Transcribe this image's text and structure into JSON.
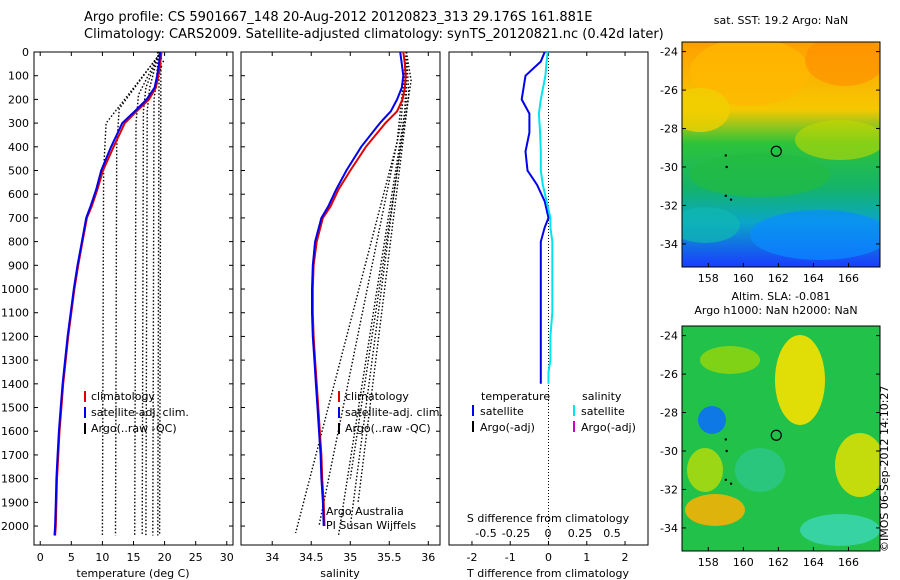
{
  "header": {
    "line1": "Argo profile: CS 5901667_148 20-Aug-2012 20120823_313 29.176S 161.881E",
    "line2": "Climatology: CARS2009. Satellite-adjusted climatology: synTS_20120821.nc (0.42d later)"
  },
  "credit": "©IMOS 06-Sep-2012 14:10:27",
  "colors": {
    "climatology": "#e00000",
    "satellite": "#0000ee",
    "argo": "#000000",
    "sat_salinity": "#00e5ee",
    "argo_adj_salinity": "#cc00cc"
  },
  "chart_data": [
    {
      "type": "line",
      "id": "temperature",
      "xlabel": "temperature (deg C)",
      "ylabel": "",
      "xlim": [
        -1,
        31
      ],
      "ylim": [
        2080,
        0
      ],
      "y_reversed": true,
      "xticks": [
        0,
        5,
        10,
        15,
        20,
        25,
        30
      ],
      "yticks": [
        0,
        100,
        200,
        300,
        400,
        500,
        600,
        700,
        800,
        900,
        1000,
        1100,
        1200,
        1300,
        1400,
        1500,
        1600,
        1700,
        1800,
        1900,
        2000
      ],
      "legend": [
        "climatology",
        "satellite-adj. clim.",
        "Argo(..raw -QC)"
      ],
      "legend_position": "lower-middle",
      "series": [
        {
          "name": "climatology",
          "color": "#e00000",
          "x": [
            19.5,
            19.3,
            19.0,
            18.6,
            17.5,
            15.5,
            13.6,
            11.8,
            10.1,
            9.2,
            8.3,
            7.5,
            6.8,
            6.1,
            5.5,
            5.0,
            4.5,
            4.1,
            3.7,
            3.4,
            3.1,
            2.9,
            2.7,
            2.6,
            2.5,
            2.4
          ],
          "y": [
            0,
            50,
            100,
            150,
            200,
            250,
            300,
            400,
            500,
            580,
            650,
            700,
            800,
            900,
            1000,
            1100,
            1200,
            1300,
            1400,
            1500,
            1600,
            1700,
            1800,
            1900,
            2000,
            2040
          ]
        },
        {
          "name": "satellite-adj. clim.",
          "color": "#0000ee",
          "x": [
            19.3,
            19.1,
            18.8,
            18.4,
            17.1,
            15.2,
            13.2,
            11.4,
            9.8,
            9.0,
            8.1,
            7.4,
            6.7,
            6.0,
            5.4,
            4.9,
            4.4,
            4.0,
            3.6,
            3.3,
            3.0,
            2.8,
            2.6,
            2.5,
            2.4,
            2.3
          ],
          "y": [
            0,
            50,
            100,
            150,
            200,
            250,
            300,
            400,
            500,
            580,
            650,
            700,
            800,
            900,
            1000,
            1100,
            1200,
            1300,
            1400,
            1500,
            1600,
            1700,
            1800,
            1900,
            2000,
            2040
          ]
        }
      ],
      "argo_raw_columns_x": [
        10.2,
        12.3,
        15.4,
        16.6,
        17.2,
        18.3,
        19.1,
        19.4
      ]
    },
    {
      "type": "line",
      "id": "salinity",
      "xlabel": "salinity",
      "ylabel": "",
      "xlim": [
        33.6,
        36.15
      ],
      "ylim": [
        2080,
        0
      ],
      "y_reversed": true,
      "xticks": [
        34,
        34.5,
        35,
        35.5,
        36
      ],
      "legend": [
        "climatology",
        "satellite-adj. clim.",
        "Argo(..raw -QC)"
      ],
      "legend_position": "lower-middle",
      "annotations": [
        "Argo Australia",
        "PI Susan Wijffels"
      ],
      "series": [
        {
          "name": "climatology",
          "color": "#e00000",
          "x": [
            35.68,
            35.7,
            35.71,
            35.7,
            35.67,
            35.6,
            35.45,
            35.2,
            35.0,
            34.85,
            34.75,
            34.65,
            34.57,
            34.53,
            34.52,
            34.52,
            34.53,
            34.55,
            34.57,
            34.59,
            34.61,
            34.63,
            34.64,
            34.66,
            34.67
          ],
          "y": [
            0,
            50,
            100,
            150,
            200,
            250,
            300,
            400,
            500,
            580,
            650,
            700,
            800,
            900,
            1000,
            1100,
            1200,
            1300,
            1400,
            1500,
            1600,
            1700,
            1800,
            1900,
            2000
          ]
        },
        {
          "name": "satellite-adj. clim.",
          "color": "#0000ee",
          "x": [
            35.64,
            35.66,
            35.68,
            35.66,
            35.6,
            35.52,
            35.38,
            35.14,
            34.95,
            34.82,
            34.72,
            34.63,
            34.55,
            34.52,
            34.51,
            34.51,
            34.52,
            34.54,
            34.56,
            34.58,
            34.6,
            34.62,
            34.63,
            34.65,
            34.66
          ],
          "y": [
            0,
            50,
            100,
            150,
            200,
            250,
            300,
            400,
            500,
            580,
            650,
            700,
            800,
            900,
            1000,
            1100,
            1200,
            1300,
            1400,
            1500,
            1600,
            1700,
            1800,
            1900,
            2000
          ]
        }
      ]
    },
    {
      "type": "line",
      "id": "difference",
      "xlabel": "T difference from climatology",
      "top_axis_label": "S difference from climatology",
      "ylabel": "",
      "xlim": [
        -2.6,
        2.6
      ],
      "ylim": [
        2080,
        0
      ],
      "y_reversed": true,
      "xticks": [
        -2,
        -1,
        0,
        1,
        2
      ],
      "top_xticks": [
        "-0.5",
        "-0.25",
        "0",
        "0.25",
        "0.5"
      ],
      "legend_temperature_title": "temperature",
      "legend_salinity_title": "salinity",
      "legend": [
        "satellite",
        "Argo(-adj)",
        "satellite",
        "Argo(-adj)"
      ],
      "series": [
        {
          "name": "satellite",
          "group": "temperature",
          "color": "#0000ee",
          "x": [
            -0.1,
            -0.2,
            -0.6,
            -0.7,
            -0.5,
            -0.5,
            -0.6,
            -0.55,
            -0.3,
            -0.1,
            0.0,
            -0.1,
            -0.2,
            -0.2,
            -0.2,
            -0.2,
            -0.2,
            -0.2,
            -0.2,
            -0.2
          ],
          "y": [
            0,
            40,
            100,
            200,
            260,
            340,
            420,
            500,
            560,
            630,
            700,
            740,
            800,
            900,
            1000,
            1100,
            1200,
            1300,
            1350,
            1400
          ]
        },
        {
          "name": "satellite",
          "group": "salinity",
          "color": "#00e5ee",
          "x": [
            -0.02,
            -0.05,
            -0.08,
            -0.2,
            -0.25,
            -0.22,
            -0.2,
            -0.2,
            -0.15,
            -0.05,
            0.05,
            0.05,
            0.1,
            0.1,
            0.1,
            0.1,
            0.05,
            0.05,
            0.0,
            0.0
          ],
          "y": [
            0,
            40,
            100,
            200,
            260,
            340,
            420,
            500,
            560,
            630,
            700,
            740,
            800,
            900,
            1000,
            1100,
            1200,
            1300,
            1350,
            1400
          ]
        }
      ]
    },
    {
      "type": "heatmap",
      "id": "sst-map",
      "title": "sat. SST: 19.2  Argo: NaN",
      "xticks": [
        "158",
        "160",
        "162",
        "164",
        "166"
      ],
      "yticks": [
        "-24",
        "-26",
        "-28",
        "-30",
        "-32",
        "-34"
      ],
      "xlim": [
        156.5,
        167.8
      ],
      "ylim": [
        -35.2,
        -23.5
      ],
      "float_position": {
        "lon": 161.88,
        "lat": -29.18
      }
    },
    {
      "type": "heatmap",
      "id": "sla-map",
      "title": "Altim. SLA: -0.081",
      "subtitle": "Argo h1000: NaN  h2000: NaN",
      "xticks": [
        "158",
        "160",
        "162",
        "164",
        "166"
      ],
      "yticks": [
        "-24",
        "-26",
        "-28",
        "-30",
        "-32",
        "-34"
      ],
      "xlim": [
        156.5,
        167.8
      ],
      "ylim": [
        -35.2,
        -23.5
      ],
      "float_position": {
        "lon": 161.88,
        "lat": -29.18
      }
    }
  ]
}
